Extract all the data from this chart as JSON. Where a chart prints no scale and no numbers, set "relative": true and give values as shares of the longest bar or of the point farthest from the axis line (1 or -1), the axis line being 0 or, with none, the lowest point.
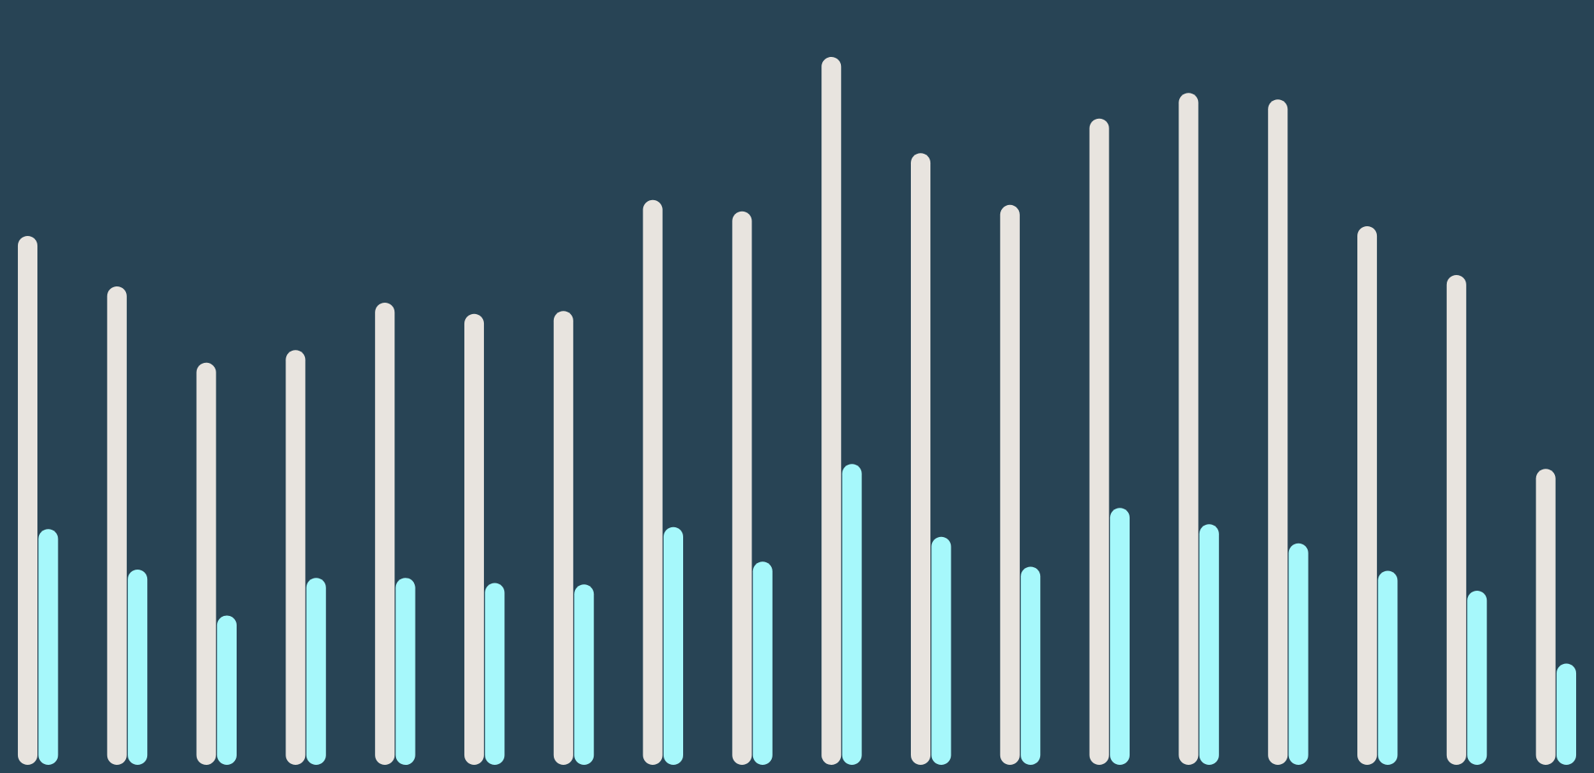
{
  "chart_data": {
    "type": "bar",
    "relative": true,
    "categories": [
      null,
      null,
      null,
      null,
      null,
      null,
      null,
      null,
      null,
      null,
      null,
      null,
      null,
      null,
      null,
      null,
      null,
      null
    ],
    "series": [
      {
        "color": "#e8e4df",
        "values": [
          0.747,
          0.676,
          0.568,
          0.586,
          0.653,
          0.637,
          0.641,
          0.798,
          0.782,
          1,
          0.864,
          0.791,
          0.913,
          0.949,
          0.94,
          0.761,
          0.692,
          0.418
        ]
      },
      {
        "color": "#a6f8fb",
        "values": [
          0.333,
          0.276,
          0.211,
          0.264,
          0.264,
          0.257,
          0.255,
          0.336,
          0.287,
          0.425,
          0.322,
          0.28,
          0.363,
          0.34,
          0.313,
          0.274,
          0.246,
          0.143
        ]
      }
    ]
  }
}
